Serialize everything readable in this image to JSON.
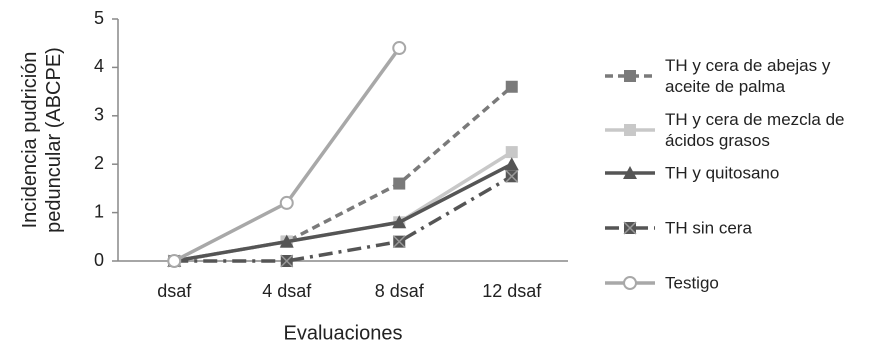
{
  "chart_data": {
    "type": "line",
    "x_label": "Evaluaciones",
    "y_label": "Incidencia pudrición peduncular (ABCPE)",
    "categories": [
      "dsaf",
      "4 dsaf",
      "8 dsaf",
      "12 dsaf"
    ],
    "ylim": [
      0,
      5
    ],
    "yticks": [
      0,
      1,
      2,
      3,
      4,
      5
    ],
    "series": [
      {
        "name": "TH y cera de abejas y aceite de palma",
        "color": "#7a7a7a",
        "dash": "dashed",
        "marker": "square",
        "values": [
          0,
          0.4,
          1.6,
          3.6
        ]
      },
      {
        "name": "TH y cera de mezcla de ácidos grasos",
        "color": "#c8c8c8",
        "dash": "solid",
        "marker": "square",
        "values": [
          0,
          0.4,
          0.8,
          2.25
        ]
      },
      {
        "name": "TH y quitosano",
        "color": "#555555",
        "dash": "solid",
        "marker": "triangle",
        "values": [
          0,
          0.4,
          0.8,
          2.0
        ]
      },
      {
        "name": "TH sin cera",
        "color": "#555555",
        "dash": "dashdot",
        "marker": "xsquare",
        "values": [
          0,
          0,
          0.4,
          1.75
        ]
      },
      {
        "name": "Testigo",
        "color": "#a8a8a8",
        "dash": "solid",
        "marker": "circle",
        "values": [
          0,
          1.2,
          4.4,
          null
        ]
      }
    ]
  }
}
